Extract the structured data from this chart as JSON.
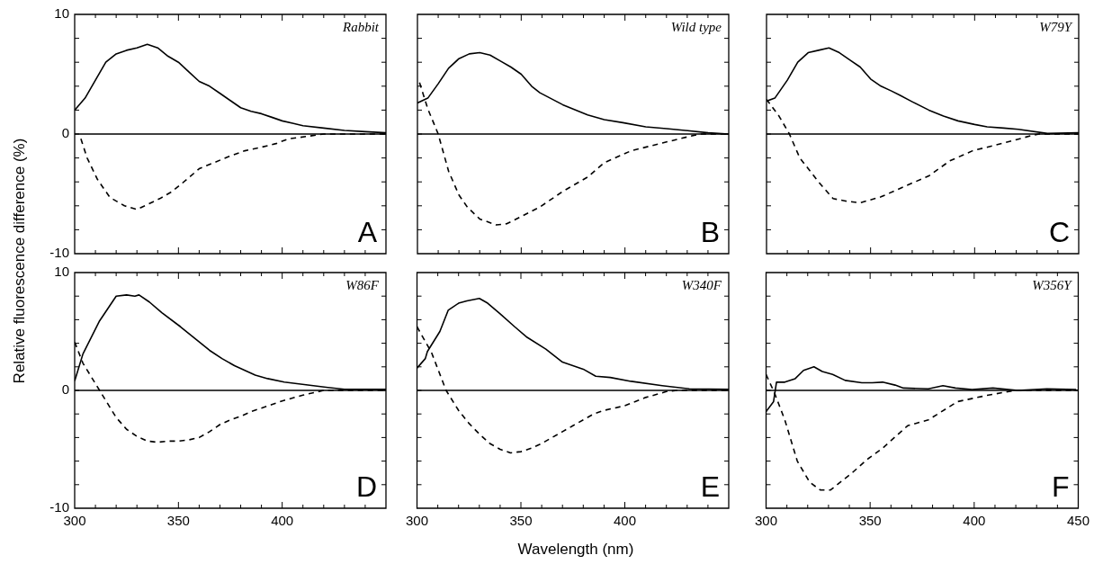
{
  "chart_data": [
    {
      "type": "line",
      "ylabel": "Relative fluorescence difference (%)",
      "annotations": [
        "Rabbit",
        "A"
      ],
      "xlim": [
        300,
        450
      ],
      "ylim": [
        -10,
        10
      ],
      "tick_labels": "y",
      "grid": false,
      "xticks": [
        300,
        {
          "value": 310,
          "label": null
        },
        {
          "value": 320,
          "label": null
        },
        {
          "value": 330,
          "label": null
        },
        {
          "value": 340,
          "label": null
        },
        350,
        {
          "value": 360,
          "label": null
        },
        {
          "value": 370,
          "label": null
        },
        {
          "value": 380,
          "label": null
        },
        {
          "value": 390,
          "label": null
        },
        400,
        {
          "value": 410,
          "label": null
        },
        {
          "value": 420,
          "label": null
        },
        {
          "value": 430,
          "label": null
        },
        {
          "value": 440,
          "label": null
        },
        {
          "value": 450,
          "label": null
        }
      ],
      "yticks": [
        -10,
        {
          "value": -8,
          "label": null
        },
        {
          "value": -6,
          "label": null
        },
        {
          "value": -4,
          "label": null
        },
        {
          "value": -2,
          "label": null
        },
        0,
        {
          "value": 2,
          "label": null
        },
        {
          "value": 4,
          "label": null
        },
        {
          "value": 6,
          "label": null
        },
        {
          "value": 8,
          "label": null
        },
        10
      ],
      "ref_lines": [
        {
          "axis": "y",
          "value": 0,
          "color": "#000000"
        }
      ],
      "series": [
        {
          "color": "#000000",
          "line_style": "solid",
          "x": [
            300,
            305,
            310,
            315,
            320,
            325,
            330,
            335,
            340,
            345,
            350,
            355,
            360,
            365,
            370,
            375,
            380,
            385,
            390,
            395,
            400,
            405,
            410,
            420,
            430,
            440,
            450
          ],
          "values": [
            2.0,
            3.0,
            4.5,
            6.0,
            6.7,
            7.0,
            7.2,
            7.5,
            7.2,
            6.5,
            6.0,
            5.2,
            4.4,
            4.0,
            3.4,
            2.8,
            2.2,
            1.9,
            1.7,
            1.4,
            1.1,
            0.9,
            0.7,
            0.5,
            0.3,
            0.2,
            0.1
          ]
        },
        {
          "color": "#000000",
          "line_style": "dashed",
          "x": [
            303,
            306,
            311,
            317,
            324,
            330,
            335,
            341,
            347,
            354,
            360,
            367,
            374,
            382,
            390,
            397,
            403,
            412,
            420,
            435,
            450
          ],
          "values": [
            -0.4,
            -2.0,
            -3.8,
            -5.3,
            -6.0,
            -6.3,
            -5.9,
            -5.4,
            -4.8,
            -3.8,
            -2.9,
            -2.4,
            -1.9,
            -1.4,
            -1.1,
            -0.8,
            -0.4,
            -0.2,
            0,
            0,
            0
          ]
        }
      ]
    },
    {
      "type": "line",
      "annotations": [
        "Wild type",
        "B"
      ],
      "xlim": [
        300,
        450
      ],
      "ylim": [
        -10,
        10
      ],
      "tick_labels": false,
      "grid": false,
      "xticks": [
        300,
        {
          "value": 310,
          "label": null
        },
        {
          "value": 320,
          "label": null
        },
        {
          "value": 330,
          "label": null
        },
        {
          "value": 340,
          "label": null
        },
        350,
        {
          "value": 360,
          "label": null
        },
        {
          "value": 370,
          "label": null
        },
        {
          "value": 380,
          "label": null
        },
        {
          "value": 390,
          "label": null
        },
        400,
        {
          "value": 410,
          "label": null
        },
        {
          "value": 420,
          "label": null
        },
        {
          "value": 430,
          "label": null
        },
        {
          "value": 440,
          "label": null
        },
        {
          "value": 450,
          "label": null
        }
      ],
      "yticks": [
        -10,
        {
          "value": -8,
          "label": null
        },
        {
          "value": -6,
          "label": null
        },
        {
          "value": -4,
          "label": null
        },
        {
          "value": -2,
          "label": null
        },
        0,
        {
          "value": 2,
          "label": null
        },
        {
          "value": 4,
          "label": null
        },
        {
          "value": 6,
          "label": null
        },
        {
          "value": 8,
          "label": null
        },
        10
      ],
      "ref_lines": [
        {
          "axis": "y",
          "value": 0,
          "color": "#000000"
        }
      ],
      "series": [
        {
          "color": "#000000",
          "line_style": "solid",
          "x": [
            300,
            305,
            310,
            315,
            320,
            325,
            330,
            335,
            340,
            345,
            350,
            355,
            359,
            370,
            382,
            390,
            399,
            410,
            420,
            429,
            440,
            450
          ],
          "values": [
            2.6,
            3.0,
            4.2,
            5.5,
            6.3,
            6.7,
            6.8,
            6.6,
            6.1,
            5.6,
            5.0,
            4.0,
            3.45,
            2.45,
            1.6,
            1.2,
            0.95,
            0.6,
            0.45,
            0.3,
            0.1,
            0
          ]
        },
        {
          "color": "#000000",
          "line_style": "dashed",
          "x": [
            301,
            305,
            310,
            315,
            320,
            324,
            330,
            338,
            343,
            350,
            359,
            370,
            382,
            390,
            403,
            418,
            431,
            436,
            450
          ],
          "values": [
            4.3,
            2.1,
            0,
            -3.1,
            -5.1,
            -6.1,
            -7.1,
            -7.6,
            -7.5,
            -6.9,
            -6.1,
            -4.8,
            -3.6,
            -2.4,
            -1.4,
            -0.75,
            -0.2,
            0,
            0
          ]
        }
      ]
    },
    {
      "type": "line",
      "annotations": [
        "W79Y",
        "C"
      ],
      "xlim": [
        300,
        450
      ],
      "ylim": [
        -10,
        10
      ],
      "tick_labels": false,
      "grid": false,
      "xticks": [
        300,
        {
          "value": 310,
          "label": null
        },
        {
          "value": 320,
          "label": null
        },
        {
          "value": 330,
          "label": null
        },
        {
          "value": 340,
          "label": null
        },
        350,
        {
          "value": 360,
          "label": null
        },
        {
          "value": 370,
          "label": null
        },
        {
          "value": 380,
          "label": null
        },
        {
          "value": 390,
          "label": null
        },
        400,
        {
          "value": 410,
          "label": null
        },
        {
          "value": 420,
          "label": null
        },
        {
          "value": 430,
          "label": null
        },
        {
          "value": 440,
          "label": null
        },
        {
          "value": 450,
          "label": null
        }
      ],
      "yticks": [
        -10,
        {
          "value": -8,
          "label": null
        },
        {
          "value": -6,
          "label": null
        },
        {
          "value": -4,
          "label": null
        },
        {
          "value": -2,
          "label": null
        },
        0,
        {
          "value": 2,
          "label": null
        },
        {
          "value": 4,
          "label": null
        },
        {
          "value": 6,
          "label": null
        },
        {
          "value": 8,
          "label": null
        },
        10
      ],
      "ref_lines": [
        {
          "axis": "y",
          "value": 0,
          "color": "#000000"
        }
      ],
      "series": [
        {
          "color": "#000000",
          "line_style": "solid",
          "x": [
            300,
            304,
            310,
            315,
            320,
            325,
            330,
            335,
            340,
            345,
            350,
            355,
            360,
            364,
            370,
            378,
            385,
            392,
            400,
            406,
            414,
            421,
            435,
            450
          ],
          "values": [
            2.75,
            3.0,
            4.5,
            6.0,
            6.8,
            7.0,
            7.2,
            6.8,
            6.2,
            5.6,
            4.6,
            4.0,
            3.6,
            3.25,
            2.7,
            2.0,
            1.5,
            1.1,
            0.8,
            0.6,
            0.5,
            0.4,
            0.05,
            0.1
          ]
        },
        {
          "color": "#000000",
          "line_style": "dashed",
          "x": [
            300,
            306,
            311,
            316,
            325,
            332,
            338,
            345,
            355,
            366,
            378,
            388,
            399,
            414,
            428,
            431,
            450
          ],
          "values": [
            2.9,
            1.5,
            0,
            -2.0,
            -4.0,
            -5.4,
            -5.6,
            -5.75,
            -5.25,
            -4.4,
            -3.5,
            -2.25,
            -1.4,
            -0.75,
            -0.1,
            0,
            0
          ]
        }
      ]
    },
    {
      "type": "line",
      "annotations": [
        "W86F",
        "D"
      ],
      "xlim": [
        300,
        450
      ],
      "ylim": [
        -10,
        10
      ],
      "grid": false,
      "xticks": [
        300,
        {
          "value": 310,
          "label": null
        },
        {
          "value": 320,
          "label": null
        },
        {
          "value": 330,
          "label": null
        },
        {
          "value": 340,
          "label": null
        },
        350,
        {
          "value": 360,
          "label": null
        },
        {
          "value": 370,
          "label": null
        },
        {
          "value": 380,
          "label": null
        },
        {
          "value": 390,
          "label": null
        },
        400,
        {
          "value": 410,
          "label": null
        },
        {
          "value": 420,
          "label": null
        },
        {
          "value": 430,
          "label": null
        },
        {
          "value": 440,
          "label": null
        },
        {
          "value": 450,
          "label": null
        }
      ],
      "yticks": [
        -10,
        {
          "value": -8,
          "label": null
        },
        {
          "value": -6,
          "label": null
        },
        {
          "value": -4,
          "label": null
        },
        {
          "value": -2,
          "label": null
        },
        0,
        {
          "value": 2,
          "label": null
        },
        {
          "value": 4,
          "label": null
        },
        {
          "value": 6,
          "label": null
        },
        {
          "value": 8,
          "label": null
        },
        10
      ],
      "ref_lines": [
        {
          "axis": "y",
          "value": 0,
          "color": "#000000"
        }
      ],
      "series": [
        {
          "color": "#000000",
          "line_style": "solid",
          "x": [
            300,
            304,
            312,
            320,
            325,
            329,
            331,
            336,
            342,
            351,
            358,
            365,
            371,
            377,
            387,
            393,
            401,
            408,
            415,
            422,
            430,
            440,
            450
          ],
          "values": [
            0.8,
            3.1,
            5.9,
            8.0,
            8.1,
            8.0,
            8.1,
            7.5,
            6.6,
            5.4,
            4.4,
            3.4,
            2.7,
            2.1,
            1.3,
            1.0,
            0.7,
            0.55,
            0.4,
            0.25,
            0.1,
            0.1,
            0.1
          ]
        },
        {
          "color": "#000000",
          "line_style": "dashed",
          "x": [
            300,
            304,
            312,
            320,
            325,
            330,
            335,
            340,
            345,
            350,
            355,
            360,
            365,
            370,
            375,
            380,
            385,
            390,
            395,
            400,
            410,
            420,
            450
          ],
          "values": [
            4.1,
            2.3,
            0,
            -2.3,
            -3.3,
            -3.9,
            -4.3,
            -4.4,
            -4.3,
            -4.3,
            -4.2,
            -4.0,
            -3.5,
            -2.9,
            -2.5,
            -2.2,
            -1.8,
            -1.5,
            -1.2,
            -0.9,
            -0.4,
            0,
            0
          ]
        }
      ]
    },
    {
      "type": "line",
      "xlabel": "Wavelength (nm)",
      "annotations": [
        "W340F",
        "E"
      ],
      "xlim": [
        300,
        450
      ],
      "ylim": [
        -10,
        10
      ],
      "tick_labels": "x",
      "grid": false,
      "xticks": [
        300,
        {
          "value": 310,
          "label": null
        },
        {
          "value": 320,
          "label": null
        },
        {
          "value": 330,
          "label": null
        },
        {
          "value": 340,
          "label": null
        },
        350,
        {
          "value": 360,
          "label": null
        },
        {
          "value": 370,
          "label": null
        },
        {
          "value": 380,
          "label": null
        },
        {
          "value": 390,
          "label": null
        },
        400,
        {
          "value": 410,
          "label": null
        },
        {
          "value": 420,
          "label": null
        },
        {
          "value": 430,
          "label": null
        },
        {
          "value": 440,
          "label": null
        },
        {
          "value": 450,
          "label": null
        }
      ],
      "yticks": [
        -10,
        {
          "value": -8,
          "label": null
        },
        {
          "value": -6,
          "label": null
        },
        {
          "value": -4,
          "label": null
        },
        {
          "value": -2,
          "label": null
        },
        0,
        {
          "value": 2,
          "label": null
        },
        {
          "value": 4,
          "label": null
        },
        {
          "value": 6,
          "label": null
        },
        {
          "value": 8,
          "label": null
        },
        10
      ],
      "ref_lines": [
        {
          "axis": "y",
          "value": 0,
          "color": "#000000"
        }
      ],
      "series": [
        {
          "color": "#000000",
          "line_style": "solid",
          "x": [
            300,
            304,
            305,
            311,
            315,
            320,
            324,
            330,
            334,
            340,
            347,
            353,
            362,
            370,
            380,
            386,
            393,
            403,
            418,
            431,
            450
          ],
          "values": [
            1.9,
            2.7,
            3.3,
            5.0,
            6.8,
            7.4,
            7.6,
            7.8,
            7.4,
            6.5,
            5.4,
            4.5,
            3.5,
            2.4,
            1.8,
            1.2,
            1.1,
            0.77,
            0.4,
            0.13,
            0.1
          ]
        },
        {
          "color": "#000000",
          "line_style": "dashed",
          "x": [
            300,
            307,
            314,
            320,
            325,
            330,
            335,
            340,
            345,
            350,
            355,
            360,
            365,
            370,
            375,
            380,
            385,
            390,
            395,
            400,
            410,
            420,
            425,
            450
          ],
          "values": [
            5.4,
            3.2,
            0,
            -1.7,
            -2.8,
            -3.7,
            -4.5,
            -5.0,
            -5.3,
            -5.2,
            -4.9,
            -4.5,
            -4.0,
            -3.5,
            -3.0,
            -2.5,
            -2.0,
            -1.7,
            -1.5,
            -1.3,
            -0.6,
            -0.1,
            0,
            0
          ]
        }
      ]
    },
    {
      "type": "line",
      "annotations": [
        "W356Y",
        "F"
      ],
      "xlim": [
        300,
        450
      ],
      "ylim": [
        -10,
        10
      ],
      "tick_labels": "x",
      "grid": false,
      "xticks": [
        300,
        {
          "value": 310,
          "label": null
        },
        {
          "value": 320,
          "label": null
        },
        {
          "value": 330,
          "label": null
        },
        {
          "value": 340,
          "label": null
        },
        350,
        {
          "value": 360,
          "label": null
        },
        {
          "value": 370,
          "label": null
        },
        {
          "value": 380,
          "label": null
        },
        {
          "value": 390,
          "label": null
        },
        400,
        {
          "value": 410,
          "label": null
        },
        {
          "value": 420,
          "label": null
        },
        {
          "value": 430,
          "label": null
        },
        {
          "value": 440,
          "label": null
        },
        450
      ],
      "yticks": [
        -10,
        {
          "value": -8,
          "label": null
        },
        {
          "value": -6,
          "label": null
        },
        {
          "value": -4,
          "label": null
        },
        {
          "value": -2,
          "label": null
        },
        0,
        {
          "value": 2,
          "label": null
        },
        {
          "value": 4,
          "label": null
        },
        {
          "value": 6,
          "label": null
        },
        {
          "value": 8,
          "label": null
        },
        10
      ],
      "ref_lines": [
        {
          "axis": "y",
          "value": 0,
          "color": "#000000"
        }
      ],
      "series": [
        {
          "color": "#000000",
          "line_style": "solid",
          "x": [
            300,
            303.6,
            305,
            309,
            314,
            318,
            323,
            327,
            332,
            338,
            346,
            351,
            356,
            362,
            366,
            378,
            385,
            391,
            399,
            409,
            421,
            435,
            449
          ],
          "values": [
            -1.8,
            -0.95,
            0.7,
            0.7,
            1.0,
            1.7,
            2.0,
            1.6,
            1.35,
            0.85,
            0.65,
            0.65,
            0.7,
            0.45,
            0.2,
            0.13,
            0.4,
            0.2,
            0.08,
            0.2,
            0,
            0.13,
            0.08
          ]
        },
        {
          "color": "#000000",
          "line_style": "dashed",
          "x": [
            300,
            304,
            309,
            315,
            321,
            326,
            331,
            341,
            349,
            356,
            368,
            378,
            392,
            406,
            418,
            420,
            450
          ],
          "values": [
            1.35,
            -0.2,
            -2.5,
            -6.0,
            -7.8,
            -8.45,
            -8.45,
            -7.05,
            -5.8,
            -4.9,
            -3.0,
            -2.5,
            -0.95,
            -0.43,
            -0.05,
            0,
            0
          ]
        }
      ]
    }
  ]
}
